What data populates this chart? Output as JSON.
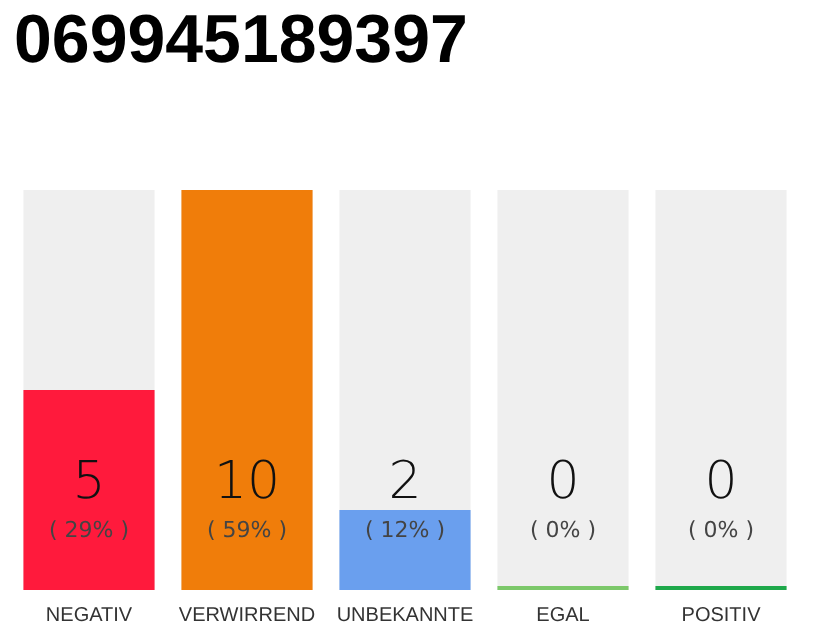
{
  "chart_data": {
    "type": "bar",
    "title": "069945189397",
    "categories": [
      "NEGATIV",
      "VERWIRREND",
      "UNBEKANNTE",
      "EGAL",
      "POSITIV"
    ],
    "values": [
      5,
      10,
      2,
      0,
      0
    ],
    "colors": [
      "#ff1a3c",
      "#f07d0a",
      "#6a9fee",
      "#7cc86a",
      "#1ea84a"
    ],
    "value_labels": [
      "5\n( 29% )",
      "10\n( 59% )",
      "2\n( 12% )",
      "0\n( 0% )",
      "0\n( 0% )"
    ]
  }
}
